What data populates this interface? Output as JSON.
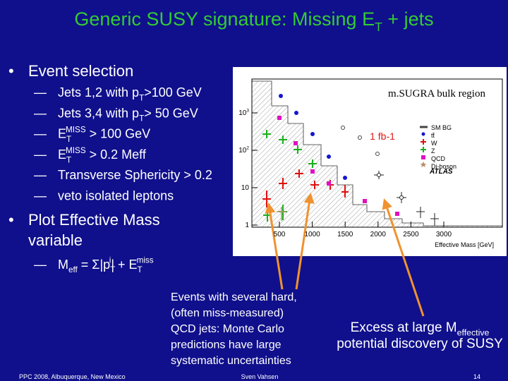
{
  "title": [
    "Generic SUSY signature: Missing E",
    {
      "sub": "T"
    },
    " + jets"
  ],
  "bullets": [
    {
      "text": [
        [
          "Event selection"
        ]
      ],
      "items": [
        {
          "marker": "—",
          "text": [
            "Jets 1,2 with p",
            {
              "sub": "T"
            },
            ">100 GeV"
          ]
        },
        {
          "marker": "—",
          "text": [
            "Jets 3,4 with p",
            {
              "sub": "T"
            },
            ">  50 GeV"
          ]
        },
        {
          "marker": "—",
          "text": [
            "E",
            {
              "sub": "T"
            },
            {
              "sup": "MISS"
            },
            " > 100 GeV"
          ]
        },
        {
          "marker": "—",
          "text": [
            "E",
            {
              "sub": "T"
            },
            {
              "sup": "MISS"
            },
            " > 0.2 Meff"
          ]
        },
        {
          "marker": "—",
          "text": [
            "Transverse Sphericity > 0.2"
          ]
        },
        {
          "marker": "—",
          "text": [
            "veto isolated leptons"
          ]
        }
      ]
    },
    {
      "text": [
        [
          "Plot Effective Mass"
        ],
        [
          "variable"
        ]
      ],
      "items": [
        {
          "marker": "—",
          "text": [
            "M",
            {
              "sub": "eff"
            },
            " = Σ|p",
            {
              "sub": "T"
            },
            {
              "sup": "i"
            },
            "| + E",
            {
              "sub": "T"
            },
            {
              "sup": "miss"
            }
          ]
        }
      ]
    }
  ],
  "plot": {
    "region_label": "m.SUGRA bulk region",
    "luminosity": "1 fb-1",
    "x_axis_label": "Effective Mass [GeV]",
    "xtick_labels": [
      "500",
      "1000",
      "1500",
      "2000",
      "2500",
      "3000"
    ],
    "ytick_labels": [
      [
        "10",
        {
          "sup": "3"
        }
      ],
      [
        "10",
        {
          "sup": "2"
        }
      ],
      [
        "10"
      ],
      [
        "1"
      ]
    ],
    "legend": [
      "SM BG",
      "tt̄",
      "W",
      "Z",
      "QCD",
      "Di-boson"
    ],
    "experiment": "ATLAS"
  },
  "annotations": {
    "qcd_note": [
      "Events with several hard,",
      "(often miss-measured)",
      "QCD jets: Monte Carlo",
      "predictions have large",
      "systematic uncertainties"
    ],
    "excess_note": [
      [
        "Excess at large M",
        {
          "sub": "effective"
        }
      ],
      [
        "potential discovery of SUSY"
      ]
    ]
  },
  "footer": {
    "left": "PPC 2008, Albuquerque, New Mexico",
    "center": "Sven Vahsen",
    "right": "14"
  }
}
